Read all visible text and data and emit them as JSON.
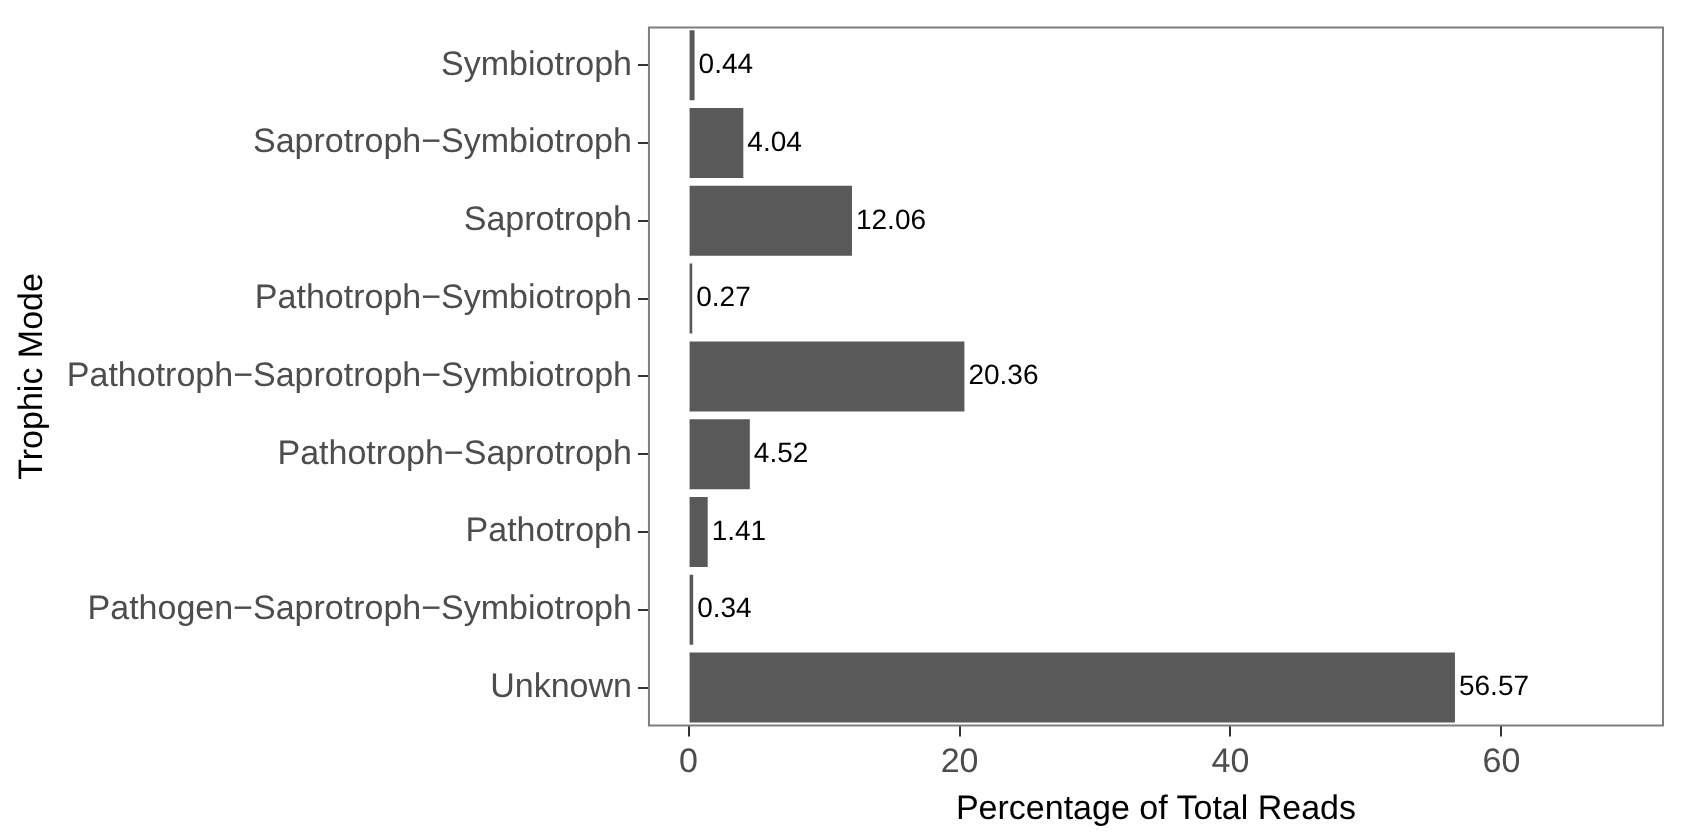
{
  "chart_data": {
    "type": "bar",
    "orientation": "horizontal",
    "xlabel": "Percentage of Total Reads",
    "ylabel": "Trophic Mode",
    "categories": [
      "Symbiotroph",
      "Saprotroph−Symbiotroph",
      "Saprotroph",
      "Pathotroph−Symbiotroph",
      "Pathotroph−Saprotroph−Symbiotroph",
      "Pathotroph−Saprotroph",
      "Pathotroph",
      "Pathogen−Saprotroph−Symbiotroph",
      "Unknown"
    ],
    "values": [
      0.44,
      4.04,
      12.06,
      0.27,
      20.36,
      4.52,
      1.41,
      0.34,
      56.57
    ],
    "color": "#595959",
    "xlim": [
      -3,
      72
    ],
    "xticks": [
      0,
      20,
      40,
      60
    ],
    "grid": false,
    "data_labels": true
  }
}
